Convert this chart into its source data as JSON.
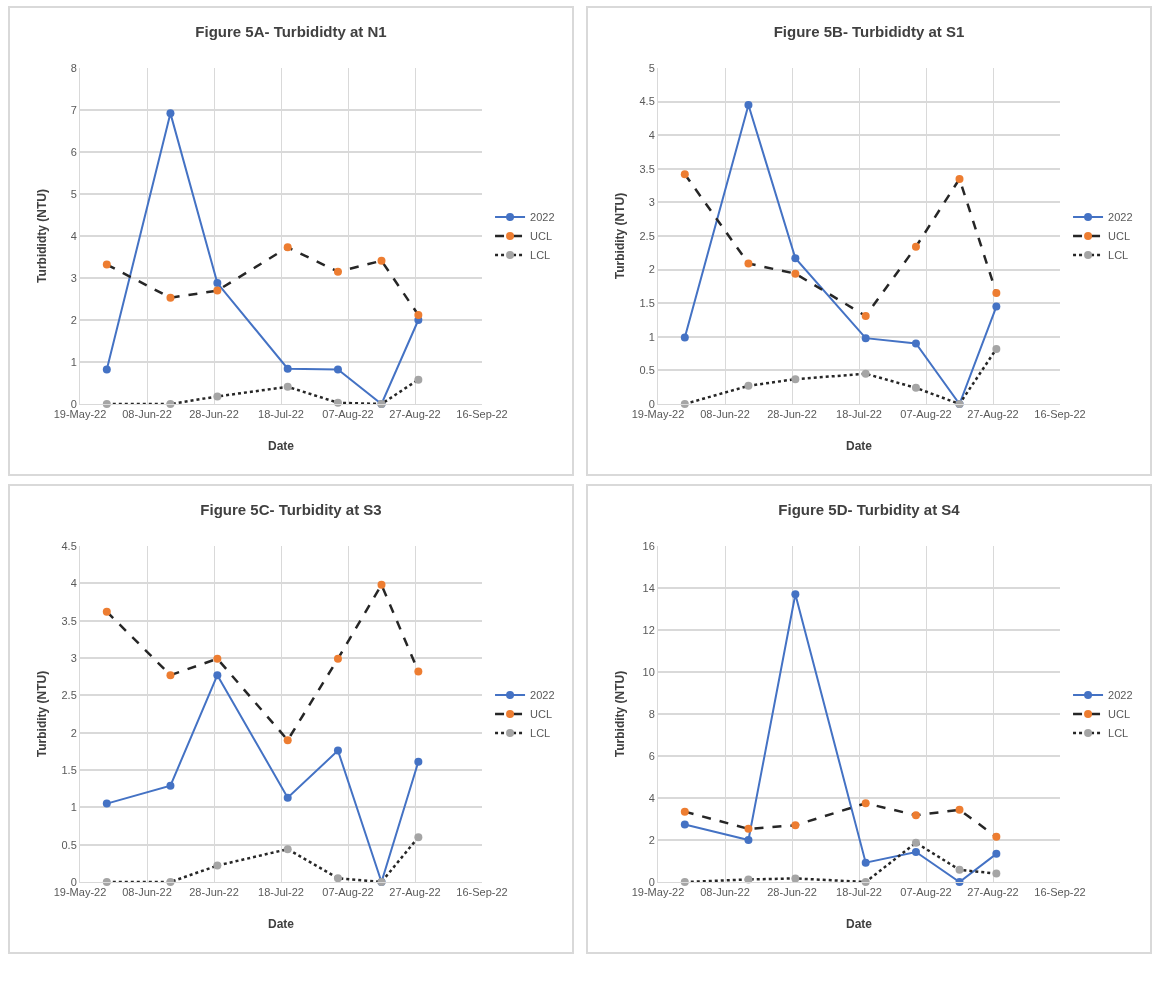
{
  "chart_data": [
    {
      "type": "line",
      "title": "Figure 5A- Turbididty at N1",
      "xlabel": "Date",
      "ylabel": "Turbididty (NTU)",
      "x": [
        "2022-05-27",
        "2022-06-15",
        "2022-06-29",
        "2022-07-20",
        "2022-08-04",
        "2022-08-17",
        "2022-08-28"
      ],
      "series": [
        {
          "name": "2022",
          "color": "#4472c4",
          "line_style": "solid",
          "values": [
            0.82,
            6.92,
            2.88,
            0.84,
            0.82,
            0,
            2.0
          ]
        },
        {
          "name": "UCL",
          "color": "#ed7d31",
          "line_style": "dashed",
          "values": [
            3.32,
            2.53,
            2.7,
            3.73,
            3.15,
            3.41,
            2.12
          ]
        },
        {
          "name": "LCL",
          "color": "#a5a5a5",
          "line_style": "dotted",
          "values": [
            0,
            0,
            0.18,
            0.41,
            0.03,
            0,
            0.58
          ]
        }
      ],
      "xlim": [
        "2022-05-19",
        "2022-09-16"
      ],
      "xticks": [
        {
          "value": "2022-05-19",
          "label": "19-May-22"
        },
        {
          "value": "2022-06-08",
          "label": "08-Jun-22"
        },
        {
          "value": "2022-06-28",
          "label": "28-Jun-22"
        },
        {
          "value": "2022-07-18",
          "label": "18-Jul-22"
        },
        {
          "value": "2022-08-07",
          "label": "07-Aug-22"
        },
        {
          "value": "2022-08-27",
          "label": "27-Aug-22"
        },
        {
          "value": "2022-09-16",
          "label": "16-Sep-22"
        }
      ],
      "ylim": [
        0,
        8
      ],
      "yticks": [
        0,
        1,
        2,
        3,
        4,
        5,
        6,
        7,
        8
      ],
      "grid": true,
      "legend": "right",
      "marker": "circle"
    },
    {
      "type": "line",
      "title": "Figure 5B- Turbididty at S1",
      "xlabel": "Date",
      "ylabel": "Turbidity (NTU)",
      "x": [
        "2022-05-27",
        "2022-06-15",
        "2022-06-29",
        "2022-07-20",
        "2022-08-04",
        "2022-08-17",
        "2022-08-28"
      ],
      "series": [
        {
          "name": "2022",
          "color": "#4472c4",
          "line_style": "solid",
          "values": [
            0.99,
            4.45,
            2.17,
            0.98,
            0.9,
            0,
            1.45
          ]
        },
        {
          "name": "UCL",
          "color": "#ed7d31",
          "line_style": "dashed",
          "values": [
            3.42,
            2.09,
            1.94,
            1.31,
            2.34,
            3.35,
            1.65
          ]
        },
        {
          "name": "LCL",
          "color": "#a5a5a5",
          "line_style": "dotted",
          "values": [
            0,
            0.27,
            0.37,
            0.45,
            0.24,
            0,
            0.82
          ]
        }
      ],
      "xlim": [
        "2022-05-19",
        "2022-09-16"
      ],
      "xticks": [
        {
          "value": "2022-05-19",
          "label": "19-May-22"
        },
        {
          "value": "2022-06-08",
          "label": "08-Jun-22"
        },
        {
          "value": "2022-06-28",
          "label": "28-Jun-22"
        },
        {
          "value": "2022-07-18",
          "label": "18-Jul-22"
        },
        {
          "value": "2022-08-07",
          "label": "07-Aug-22"
        },
        {
          "value": "2022-08-27",
          "label": "27-Aug-22"
        },
        {
          "value": "2022-09-16",
          "label": "16-Sep-22"
        }
      ],
      "ylim": [
        0,
        5
      ],
      "yticks": [
        0,
        0.5,
        1,
        1.5,
        2,
        2.5,
        3,
        3.5,
        4,
        4.5,
        5
      ],
      "grid": true,
      "legend": "right",
      "marker": "circle"
    },
    {
      "type": "line",
      "title": "Figure 5C- Turbidity at S3",
      "xlabel": "Date",
      "ylabel": "Turbidity (NTU)",
      "x": [
        "2022-05-27",
        "2022-06-15",
        "2022-06-29",
        "2022-07-20",
        "2022-08-04",
        "2022-08-17",
        "2022-08-28"
      ],
      "series": [
        {
          "name": "2022",
          "color": "#4472c4",
          "line_style": "solid",
          "values": [
            1.05,
            1.29,
            2.77,
            1.13,
            1.76,
            0,
            1.61
          ]
        },
        {
          "name": "UCL",
          "color": "#ed7d31",
          "line_style": "dashed",
          "values": [
            3.62,
            2.77,
            2.99,
            1.9,
            2.99,
            3.98,
            2.82
          ]
        },
        {
          "name": "LCL",
          "color": "#a5a5a5",
          "line_style": "dotted",
          "values": [
            0,
            0,
            0.22,
            0.44,
            0.05,
            0,
            0.6
          ]
        }
      ],
      "xlim": [
        "2022-05-19",
        "2022-09-16"
      ],
      "xticks": [
        {
          "value": "2022-05-19",
          "label": "19-May-22"
        },
        {
          "value": "2022-06-08",
          "label": "08-Jun-22"
        },
        {
          "value": "2022-06-28",
          "label": "28-Jun-22"
        },
        {
          "value": "2022-07-18",
          "label": "18-Jul-22"
        },
        {
          "value": "2022-08-07",
          "label": "07-Aug-22"
        },
        {
          "value": "2022-08-27",
          "label": "27-Aug-22"
        },
        {
          "value": "2022-09-16",
          "label": "16-Sep-22"
        }
      ],
      "ylim": [
        0,
        4.5
      ],
      "yticks": [
        0,
        0.5,
        1,
        1.5,
        2,
        2.5,
        3,
        3.5,
        4,
        4.5
      ],
      "grid": true,
      "legend": "right",
      "marker": "circle"
    },
    {
      "type": "line",
      "title": "Figure 5D- Turbidity at S4",
      "xlabel": "Date",
      "ylabel": "Turbidity (NTU)",
      "x": [
        "2022-05-27",
        "2022-06-15",
        "2022-06-29",
        "2022-07-20",
        "2022-08-04",
        "2022-08-17",
        "2022-08-28"
      ],
      "series": [
        {
          "name": "2022",
          "color": "#4472c4",
          "line_style": "solid",
          "values": [
            2.74,
            2.0,
            13.7,
            0.92,
            1.43,
            0,
            1.34
          ]
        },
        {
          "name": "UCL",
          "color": "#ed7d31",
          "line_style": "dashed",
          "values": [
            3.35,
            2.53,
            2.7,
            3.75,
            3.18,
            3.44,
            2.15
          ]
        },
        {
          "name": "LCL",
          "color": "#a5a5a5",
          "line_style": "dotted",
          "values": [
            0,
            0.12,
            0.17,
            0,
            1.87,
            0.58,
            0.4
          ]
        }
      ],
      "xlim": [
        "2022-05-19",
        "2022-09-16"
      ],
      "xticks": [
        {
          "value": "2022-05-19",
          "label": "19-May-22"
        },
        {
          "value": "2022-06-08",
          "label": "08-Jun-22"
        },
        {
          "value": "2022-06-28",
          "label": "28-Jun-22"
        },
        {
          "value": "2022-07-18",
          "label": "18-Jul-22"
        },
        {
          "value": "2022-08-07",
          "label": "07-Aug-22"
        },
        {
          "value": "2022-08-27",
          "label": "27-Aug-22"
        },
        {
          "value": "2022-09-16",
          "label": "16-Sep-22"
        }
      ],
      "ylim": [
        0,
        16
      ],
      "yticks": [
        0,
        2,
        4,
        6,
        8,
        10,
        12,
        14,
        16
      ],
      "grid": true,
      "legend": "right",
      "marker": "circle"
    }
  ]
}
